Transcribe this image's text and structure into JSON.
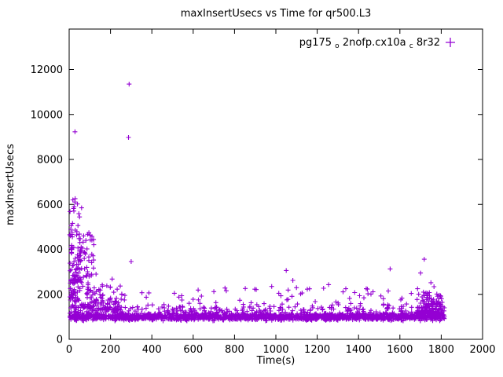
{
  "page": {
    "title": "maxInsertUsecs vs Time for qr500.L3"
  },
  "chart_data": {
    "type": "scatter",
    "title": "maxInsertUsecs vs Time for qr500.L3",
    "xlabel": "Time(s)",
    "ylabel": "maxInsertUsecs",
    "xlim": [
      0,
      2000
    ],
    "ylim": [
      0,
      13800
    ],
    "xticks": [
      0,
      200,
      400,
      600,
      800,
      1000,
      1200,
      1400,
      1600,
      1800,
      2000
    ],
    "yticks": [
      0,
      2000,
      4000,
      6000,
      8000,
      10000,
      12000
    ],
    "grid": false,
    "marker": "plus",
    "marker_color": "#9400D3",
    "axis_color": "#000000",
    "legend": {
      "position": "top-right-inside",
      "label_plain": "pg175_o2nofp.cx10a_c8r32",
      "label_parts": [
        {
          "text": "pg175",
          "sub": false
        },
        {
          "text": "o",
          "sub": true
        },
        {
          "text": "2nofp.cx10a",
          "sub": false
        },
        {
          "text": "c",
          "sub": true
        },
        {
          "text": "8r32",
          "sub": false
        }
      ]
    },
    "series": [
      {
        "name": "pg175_o2nofp.cx10a_c8r32",
        "summary": "Dense band of points near y≈1000 spanning x≈0–1810; elevated scatter 1500–6300 for x<250; occasional spikes 1800–3600 across the full range; extreme outliers near x≈290 at ~11350 and ~8980; denser elevated blob near x≈1700–1800.",
        "outlier_points": [
          [
            290,
            11350
          ],
          [
            287,
            8980
          ],
          [
            28,
            9230
          ],
          [
            18,
            6200
          ],
          [
            24,
            5900
          ],
          [
            60,
            5850
          ],
          [
            10,
            5060
          ],
          [
            8,
            4890
          ],
          [
            14,
            4750
          ],
          [
            36,
            4640
          ],
          [
            70,
            4600
          ],
          [
            48,
            4480
          ],
          [
            12,
            4180
          ],
          [
            55,
            3930
          ],
          [
            42,
            3650
          ],
          [
            95,
            3500
          ],
          [
            300,
            3460
          ],
          [
            1718,
            3560
          ],
          [
            1553,
            3130
          ],
          [
            1050,
            3060
          ],
          [
            33,
            3100
          ],
          [
            85,
            3200
          ],
          [
            5,
            3050
          ],
          [
            130,
            2900
          ],
          [
            1700,
            2950
          ],
          [
            22,
            2850
          ],
          [
            208,
            2680
          ],
          [
            1082,
            2620
          ],
          [
            1750,
            2520
          ],
          [
            1255,
            2430
          ],
          [
            160,
            2420
          ],
          [
            980,
            2350
          ],
          [
            1765,
            2340
          ],
          [
            852,
            2260
          ],
          [
            898,
            2230
          ],
          [
            1152,
            2230
          ],
          [
            905,
            2210
          ],
          [
            760,
            2160
          ],
          [
            700,
            2120
          ],
          [
            1325,
            2110
          ],
          [
            1655,
            2040
          ],
          [
            1460,
            2010
          ],
          [
            1405,
            1940
          ],
          [
            1508,
            1930
          ],
          [
            640,
            1920
          ],
          [
            1610,
            1830
          ],
          [
            6,
            1750
          ]
        ],
        "clusters": [
          {
            "name": "main-band",
            "x_min": 3,
            "x_max": 1815,
            "count": 1500,
            "y_dist": "gauss",
            "y_mean": 990,
            "y_sd": 70,
            "y_clip_min": 820,
            "y_clip_max": 1350
          },
          {
            "name": "upper-band",
            "x_min": 3,
            "x_max": 1815,
            "count": 350,
            "y_dist": "uniform",
            "y_min": 1050,
            "y_max": 1400
          },
          {
            "name": "sparse-mid",
            "x_min": 120,
            "x_max": 1815,
            "count": 110,
            "y_dist": "uniform",
            "y_min": 1400,
            "y_max": 2300
          },
          {
            "name": "early-elevated",
            "x_min": 2,
            "x_max": 120,
            "count": 140,
            "y_dist": "uniform",
            "y_min": 1400,
            "y_max": 4800
          },
          {
            "name": "early-decay",
            "x_min": 100,
            "x_max": 260,
            "count": 90,
            "y_dist": "uniform",
            "y_min": 1300,
            "y_max": 2400
          },
          {
            "name": "end-blob",
            "x_min": 1680,
            "x_max": 1805,
            "count": 140,
            "y_dist": "uniform",
            "y_min": 1150,
            "y_max": 2100
          },
          {
            "name": "very-early-high",
            "x_min": 2,
            "x_max": 60,
            "count": 50,
            "y_dist": "uniform",
            "y_min": 2500,
            "y_max": 6300
          }
        ]
      }
    ]
  }
}
